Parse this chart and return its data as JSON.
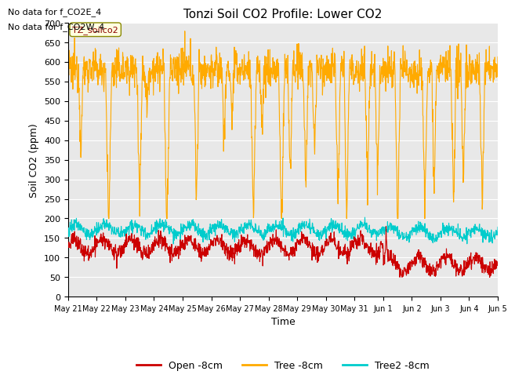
{
  "title": "Tonzi Soil CO2 Profile: Lower CO2",
  "ylabel": "Soil CO2 (ppm)",
  "xlabel": "Time",
  "no_data_text_1": "No data for f_CO2E_4",
  "no_data_text_2": "No data for f_CO2W_4",
  "station_label": "TZ_soilco2",
  "ylim": [
    0,
    700
  ],
  "yticks": [
    0,
    50,
    100,
    150,
    200,
    250,
    300,
    350,
    400,
    450,
    500,
    550,
    600,
    650,
    700
  ],
  "xtick_labels": [
    "May 21",
    "May 22",
    "May 23",
    "May 24",
    "May 25",
    "May 26",
    "May 27",
    "May 28",
    "May 29",
    "May 30",
    "May 31",
    "Jun 1",
    "Jun 2",
    "Jun 3",
    "Jun 4",
    "Jun 5"
  ],
  "n_days": 15,
  "colors": {
    "open": "#cc0000",
    "tree": "#ffaa00",
    "tree2": "#00cccc",
    "background": "#e8e8e8",
    "grid": "white"
  },
  "legend": [
    {
      "label": "Open -8cm",
      "color": "#cc0000"
    },
    {
      "label": "Tree -8cm",
      "color": "#ffaa00"
    },
    {
      "label": "Tree2 -8cm",
      "color": "#00cccc"
    }
  ],
  "figsize": [
    6.4,
    4.8
  ],
  "dpi": 100
}
